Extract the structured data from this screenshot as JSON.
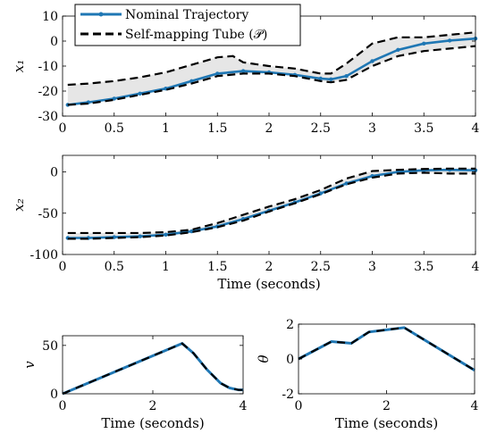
{
  "legend": {
    "entries": [
      {
        "label": "Nominal Trajectory",
        "color": "#1f77b4",
        "style": "solid-markers"
      },
      {
        "label": "Self-mapping Tube (𝒫)",
        "color": "#000000",
        "style": "dashed"
      }
    ],
    "placement": "top-left"
  },
  "chart_data": [
    {
      "id": "x1",
      "type": "line",
      "ylabel": "x₁",
      "xlabel": "",
      "xlim": [
        0,
        4
      ],
      "ylim": [
        -30,
        10
      ],
      "xticks": [
        0,
        0.5,
        1,
        1.5,
        2,
        2.5,
        3,
        3.5,
        4
      ],
      "xtick_labels": [
        "0",
        "0.5",
        "1",
        "1.5",
        "2",
        "2.5",
        "3",
        "3.5",
        "4"
      ],
      "yticks": [
        -30,
        -20,
        -10,
        0,
        10
      ],
      "ytick_labels": [
        "-30",
        "-20",
        "-10",
        "0",
        "10"
      ],
      "grid": false,
      "series": [
        {
          "name": "Nominal Trajectory",
          "role": "nominal",
          "color": "#1f77b4",
          "x": [
            0.05,
            0.25,
            0.5,
            0.75,
            1.0,
            1.25,
            1.5,
            1.75,
            2.0,
            2.25,
            2.5,
            2.6,
            2.75,
            3.0,
            3.25,
            3.5,
            3.75,
            4.0
          ],
          "y": [
            -25.5,
            -24.5,
            -23,
            -21,
            -19,
            -16,
            -13,
            -12,
            -12.5,
            -13.5,
            -15,
            -15.3,
            -14,
            -8,
            -3.5,
            -1,
            0.2,
            1
          ]
        },
        {
          "name": "Self-mapping Tube (𝒫)",
          "role": "tube-upper",
          "color": "#000000",
          "x": [
            0.05,
            0.25,
            0.5,
            0.75,
            1.0,
            1.25,
            1.5,
            1.65,
            1.75,
            2.0,
            2.25,
            2.5,
            2.6,
            2.75,
            3.0,
            3.25,
            3.5,
            3.75,
            4.0
          ],
          "y": [
            -17.5,
            -17,
            -16,
            -14.5,
            -12.5,
            -9.5,
            -6.5,
            -6,
            -8.5,
            -10,
            -11,
            -13,
            -13,
            -9,
            -1,
            1.5,
            1.5,
            2.5,
            3.5
          ]
        },
        {
          "name": "Self-mapping Tube (𝒫)",
          "role": "tube-lower",
          "color": "#000000",
          "x": [
            0.05,
            0.25,
            0.5,
            0.75,
            1.0,
            1.25,
            1.5,
            1.75,
            2.0,
            2.25,
            2.5,
            2.6,
            2.75,
            3.0,
            3.25,
            3.5,
            3.75,
            4.0
          ],
          "y": [
            -25.5,
            -25,
            -23.5,
            -21.5,
            -19.5,
            -17,
            -14,
            -13,
            -13,
            -14,
            -16,
            -16.5,
            -15.5,
            -10,
            -6,
            -4,
            -3,
            -2
          ]
        }
      ]
    },
    {
      "id": "x2",
      "type": "line",
      "ylabel": "x₂",
      "xlabel": "Time (seconds)",
      "xlim": [
        0,
        4
      ],
      "ylim": [
        -100,
        20
      ],
      "xticks": [
        0,
        0.5,
        1,
        1.5,
        2,
        2.5,
        3,
        3.5,
        4
      ],
      "xtick_labels": [
        "0",
        "0.5",
        "1",
        "1.5",
        "2",
        "2.5",
        "3",
        "3.5",
        "4"
      ],
      "yticks": [
        -100,
        -50,
        0
      ],
      "ytick_labels": [
        "-100",
        "-50",
        "0"
      ],
      "grid": false,
      "series": [
        {
          "name": "Nominal Trajectory",
          "role": "nominal",
          "color": "#1f77b4",
          "x": [
            0.05,
            0.25,
            0.5,
            0.75,
            1.0,
            1.25,
            1.5,
            1.75,
            2.0,
            2.25,
            2.5,
            2.75,
            3.0,
            3.25,
            3.5,
            3.75,
            4.0
          ],
          "y": [
            -80,
            -80,
            -79,
            -78,
            -76,
            -72,
            -66,
            -57,
            -47,
            -37,
            -26,
            -14,
            -5,
            0,
            2,
            2.5,
            2
          ]
        },
        {
          "name": "Self-mapping Tube (𝒫)",
          "role": "tube-upper",
          "color": "#000000",
          "x": [
            0.05,
            0.25,
            0.5,
            0.75,
            1.0,
            1.25,
            1.5,
            1.75,
            2.0,
            2.25,
            2.5,
            2.75,
            3.0,
            3.25,
            3.5,
            3.75,
            4.0
          ],
          "y": [
            -74,
            -74,
            -74,
            -74,
            -73,
            -70,
            -62,
            -52,
            -42,
            -33,
            -22,
            -8,
            1,
            2.5,
            3.5,
            4,
            4
          ]
        },
        {
          "name": "Self-mapping Tube (𝒫)",
          "role": "tube-lower",
          "color": "#000000",
          "x": [
            0.05,
            0.25,
            0.5,
            0.75,
            1.0,
            1.25,
            1.5,
            1.75,
            2.0,
            2.25,
            2.5,
            2.75,
            3.0,
            3.25,
            3.5,
            3.75,
            4.0
          ],
          "y": [
            -81,
            -81,
            -80,
            -79,
            -77,
            -73,
            -67,
            -59,
            -48,
            -38,
            -27,
            -15,
            -7,
            -2,
            -1,
            -2,
            -2
          ]
        }
      ]
    },
    {
      "id": "v",
      "type": "line",
      "ylabel": "v",
      "xlabel": "Time (seconds)",
      "xlim": [
        0,
        4
      ],
      "ylim": [
        0,
        60
      ],
      "xticks": [
        0,
        2,
        4
      ],
      "xtick_labels": [
        "0",
        "2",
        "4"
      ],
      "yticks": [
        0,
        50
      ],
      "ytick_labels": [
        "0",
        "50"
      ],
      "grid": false,
      "series": [
        {
          "name": "Nominal Trajectory",
          "role": "nominal-dashed",
          "color": "#1f77b4",
          "x": [
            0,
            2.65,
            2.9,
            3.2,
            3.5,
            3.7,
            3.9,
            4.0
          ],
          "y": [
            0,
            52,
            42,
            25,
            11,
            6,
            4,
            4
          ]
        }
      ]
    },
    {
      "id": "theta",
      "type": "line",
      "ylabel": "θ",
      "xlabel": "Time (seconds)",
      "xlim": [
        0,
        4
      ],
      "ylim": [
        -2,
        2
      ],
      "xticks": [
        0,
        2,
        4
      ],
      "xtick_labels": [
        "0",
        "2",
        "4"
      ],
      "yticks": [
        -2,
        0,
        2
      ],
      "ytick_labels": [
        "-2",
        "0",
        "2"
      ],
      "grid": false,
      "series": [
        {
          "name": "Nominal Trajectory",
          "role": "nominal-dashed",
          "color": "#1f77b4",
          "x": [
            0,
            0.75,
            1.2,
            1.6,
            2.4,
            4.0
          ],
          "y": [
            0,
            1.0,
            0.9,
            1.55,
            1.8,
            -0.65
          ]
        }
      ]
    }
  ]
}
